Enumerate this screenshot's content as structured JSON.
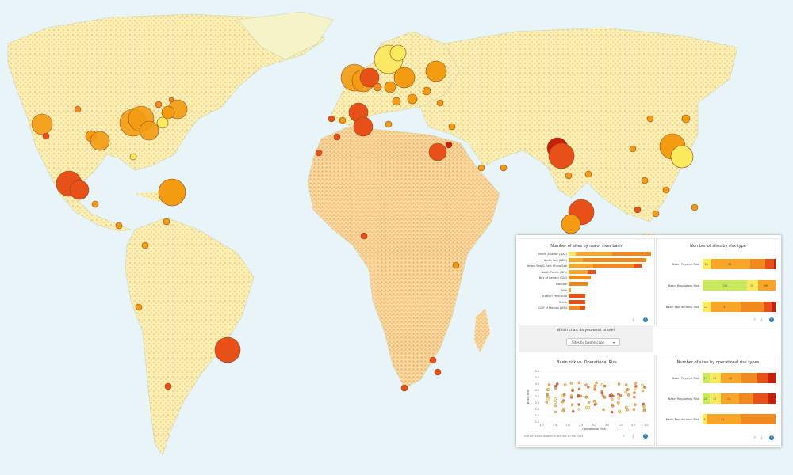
{
  "colors": {
    "ocean": "#e8f4f8",
    "land": "#fbf2b6",
    "land_warm": "#f7d58e",
    "border": "#7a7a7a"
  },
  "site_markers": [
    {
      "name": "west-usa",
      "color": "#f39c12"
    },
    {
      "name": "east-usa",
      "color": "#f39c12"
    },
    {
      "name": "mexico",
      "color": "#e8501a"
    },
    {
      "name": "caribbean",
      "color": "#f39c12"
    },
    {
      "name": "brazil",
      "color": "#e8501a"
    },
    {
      "name": "europe",
      "color": "#f39c12"
    },
    {
      "name": "scandinavia",
      "color": "#fbe95e"
    },
    {
      "name": "iberia",
      "color": "#e8501a"
    },
    {
      "name": "egypt",
      "color": "#e8501a"
    },
    {
      "name": "india",
      "color": "#e8501a"
    },
    {
      "name": "china",
      "color": "#f39c12"
    },
    {
      "name": "sri-lanka",
      "color": "#e8501a"
    }
  ],
  "panel": {
    "basin_chart": {
      "title": "Number of sites by major river basin",
      "rows": [
        {
          "label": "North Atlantic (NAT)",
          "text_a": "3",
          "text_b": "15",
          "segments": [
            {
              "v": 3,
              "c": "#fbe95e"
            },
            {
              "v": 15,
              "c": "#f7a628"
            },
            {
              "v": 16,
              "c": "#f18a1e"
            }
          ]
        },
        {
          "label": "North Sea (NRS)",
          "text_a": "",
          "text_b": "",
          "segments": [
            {
              "v": 6,
              "c": "#f7a628"
            },
            {
              "v": 26,
              "c": "#f18a1e"
            }
          ]
        },
        {
          "label": "Yellow Sea & East China Sea",
          "text_a": "",
          "text_b": "",
          "segments": [
            {
              "v": 10,
              "c": "#f7a628"
            },
            {
              "v": 17,
              "c": "#f18a1e"
            },
            {
              "v": 3,
              "c": "#e8501a"
            }
          ]
        },
        {
          "label": "North Pacific (NPI)",
          "text_a": "",
          "text_b": "",
          "segments": [
            {
              "v": 8,
              "c": "#f7a628"
            },
            {
              "v": 3,
              "c": "#e8501a"
            }
          ]
        },
        {
          "label": "Bay of Bengal (GUI)",
          "text_a": "",
          "text_b": "",
          "segments": [
            {
              "v": 9,
              "c": "#f18a1e"
            }
          ]
        },
        {
          "label": "Danube",
          "text_a": "",
          "text_b": "",
          "segments": [
            {
              "v": 8,
              "c": "#f18a1e"
            }
          ]
        },
        {
          "label": "Nile",
          "text_a": "",
          "text_b": "",
          "segments": [
            {
              "v": 1,
              "c": "#f7a628"
            }
          ]
        },
        {
          "label": "Arabian Peninsula",
          "text_a": "",
          "text_b": "",
          "segments": [
            {
              "v": 7,
              "c": "#e8501a"
            }
          ]
        },
        {
          "label": "Rhine",
          "text_a": "",
          "text_b": "",
          "segments": [
            {
              "v": 7,
              "c": "#e8501a"
            }
          ]
        },
        {
          "label": "Gulf of Mexico (WD)",
          "text_a": "",
          "text_b": "",
          "segments": [
            {
              "v": 5,
              "c": "#f18a1e"
            },
            {
              "v": 2,
              "c": "#e8501a"
            }
          ]
        }
      ],
      "max": 34
    },
    "risk_type_chart": {
      "title": "Number of sites by risk type",
      "rows": [
        {
          "label": "Basin Physical Risk",
          "segments": [
            {
              "v": 10,
              "c": "#fbe95e",
              "t": "10"
            },
            {
              "v": 46,
              "c": "#f7a628",
              "t": "84"
            },
            {
              "v": 18,
              "c": "#f18a1e",
              "t": ""
            },
            {
              "v": 10,
              "c": "#e8501a",
              "t": ""
            },
            {
              "v": 2,
              "c": "#c9200e",
              "t": ""
            }
          ]
        },
        {
          "label": "Basin Regulatory Risk",
          "segments": [
            {
              "v": 50,
              "c": "#c9ea5f",
              "t": "130"
            },
            {
              "v": 12,
              "c": "#fbe95e",
              "t": "31"
            },
            {
              "v": 20,
              "c": "#f7a628",
              "t": "68"
            }
          ]
        },
        {
          "label": "Basin Reputational Risk",
          "segments": [
            {
              "v": 10,
              "c": "#fbe95e",
              "t": "11"
            },
            {
              "v": 40,
              "c": "#f7a628",
              "t": "41"
            },
            {
              "v": 30,
              "c": "#f18a1e",
              "t": ""
            },
            {
              "v": 10,
              "c": "#e8501a",
              "t": ""
            },
            {
              "v": 5,
              "c": "#c9200e",
              "t": ""
            }
          ]
        }
      ]
    },
    "selector": {
      "question": "Which chart do you want to see?",
      "selected": "Sites by basin/scape"
    },
    "scatter_chart": {
      "title": "Basin risk vs. Operational Risk",
      "xlabel": "Operational Risk",
      "ylabel": "Basin Risk",
      "x_ticks": [
        "1.0",
        "1.5",
        "2.0",
        "2.5",
        "3.0",
        "3.5",
        "4.0",
        "4.5",
        "5.0"
      ],
      "y_ticks": [
        "5.0",
        "4.5",
        "4.0",
        "3.5",
        "3.0",
        "2.5",
        "2.0",
        "1.5",
        "1.0"
      ],
      "note": "Use Ctrl-Scroll to zoom in and out on the chart"
    },
    "op_risk_chart": {
      "title": "Number of sites by operational risk types",
      "rows": [
        {
          "label": "Basin Physical Risk",
          "segments": [
            {
              "v": 10,
              "c": "#c9ea5f",
              "t": "17"
            },
            {
              "v": 15,
              "c": "#fbe95e",
              "t": "29"
            },
            {
              "v": 28,
              "c": "#f7a628",
              "t": "46"
            },
            {
              "v": 22,
              "c": "#f18a1e",
              "t": ""
            },
            {
              "v": 15,
              "c": "#e8501a",
              "t": ""
            },
            {
              "v": 10,
              "c": "#c9200e",
              "t": ""
            }
          ]
        },
        {
          "label": "Basin Regulatory Risk",
          "segments": [
            {
              "v": 10,
              "c": "#c9ea5f",
              "t": "20"
            },
            {
              "v": 15,
              "c": "#fbe95e",
              "t": "34"
            },
            {
              "v": 25,
              "c": "#f7a628",
              "t": "41"
            },
            {
              "v": 20,
              "c": "#f18a1e",
              "t": ""
            },
            {
              "v": 20,
              "c": "#e8501a",
              "t": ""
            },
            {
              "v": 10,
              "c": "#c9200e",
              "t": ""
            }
          ]
        },
        {
          "label": "Basin Reputational Risk",
          "segments": [
            {
              "v": 5,
              "c": "#fbe95e",
              "t": "13"
            },
            {
              "v": 47,
              "c": "#f7a628",
              "t": "41"
            },
            {
              "v": 48,
              "c": "#f18a1e",
              "t": ""
            }
          ]
        }
      ]
    }
  }
}
